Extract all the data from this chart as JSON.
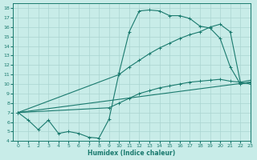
{
  "line1_x": [
    0,
    1,
    2,
    3,
    4,
    5,
    6,
    7,
    8,
    9,
    10,
    11,
    12,
    13,
    14,
    15,
    16,
    17,
    18,
    19,
    20,
    21,
    22,
    23
  ],
  "line1_y": [
    7.0,
    6.2,
    5.2,
    6.2,
    4.8,
    5.0,
    4.8,
    4.4,
    4.3,
    6.3,
    11.2,
    15.5,
    17.7,
    17.8,
    17.7,
    17.2,
    17.2,
    16.9,
    16.1,
    15.9,
    14.8,
    11.8,
    10.0,
    10.2
  ],
  "line2_x": [
    0,
    10,
    11,
    12,
    13,
    14,
    15,
    16,
    17,
    18,
    19,
    20,
    21,
    22,
    23
  ],
  "line2_y": [
    7.0,
    11.0,
    11.8,
    12.5,
    13.2,
    13.8,
    14.3,
    14.8,
    15.2,
    15.5,
    16.0,
    16.3,
    15.5,
    10.2,
    10.4
  ],
  "line3_x": [
    0,
    23
  ],
  "line3_y": [
    7.0,
    10.2
  ],
  "line4_x": [
    0,
    9,
    10,
    11,
    12,
    13,
    14,
    15,
    16,
    17,
    18,
    19,
    20,
    21,
    22,
    23
  ],
  "line4_y": [
    7.0,
    7.5,
    8.0,
    8.5,
    9.0,
    9.3,
    9.6,
    9.8,
    10.0,
    10.2,
    10.3,
    10.4,
    10.5,
    10.3,
    10.2,
    10.0
  ],
  "line_color": "#1a7a6e",
  "bg_color": "#c8ece8",
  "grid_color": "#aad4d0",
  "xlabel": "Humidex (Indice chaleur)",
  "xlim": [
    -0.5,
    23
  ],
  "ylim": [
    4,
    18.5
  ],
  "yticks": [
    4,
    5,
    6,
    7,
    8,
    9,
    10,
    11,
    12,
    13,
    14,
    15,
    16,
    17,
    18
  ],
  "xticks": [
    0,
    1,
    2,
    3,
    4,
    5,
    6,
    7,
    8,
    9,
    10,
    11,
    12,
    13,
    14,
    15,
    16,
    17,
    18,
    19,
    20,
    21,
    22,
    23
  ]
}
